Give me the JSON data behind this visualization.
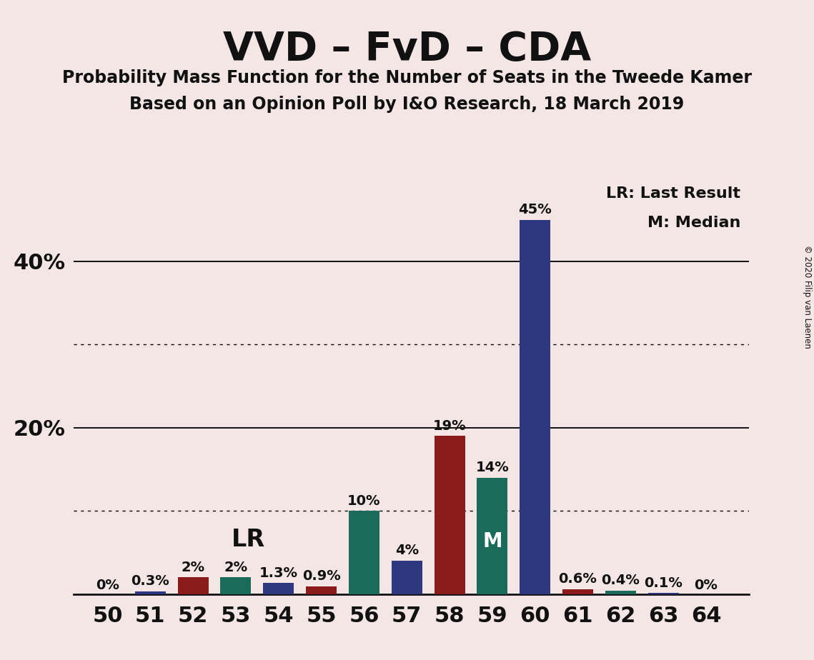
{
  "title": "VVD – FvD – CDA",
  "subtitle1": "Probability Mass Function for the Number of Seats in the Tweede Kamer",
  "subtitle2": "Based on an Opinion Poll by I&O Research, 18 March 2019",
  "copyright": "© 2020 Filip van Laenen",
  "background_color": "#f5e6e6",
  "seats": [
    50,
    51,
    52,
    53,
    54,
    55,
    56,
    57,
    58,
    59,
    60,
    61,
    62,
    63,
    64
  ],
  "values": [
    0.0,
    0.3,
    2.0,
    2.0,
    1.3,
    0.9,
    10.0,
    4.0,
    19.0,
    14.0,
    45.0,
    0.6,
    0.4,
    0.1,
    0.0
  ],
  "labels": [
    "0%",
    "0.3%",
    "2%",
    "2%",
    "1.3%",
    "0.9%",
    "10%",
    "4%",
    "19%",
    "14%",
    "45%",
    "0.6%",
    "0.4%",
    "0.1%",
    "0%"
  ],
  "bar_colors": [
    "#2e3880",
    "#2e3880",
    "#8b1a1a",
    "#1a6b5a",
    "#2e3880",
    "#8b1a1a",
    "#1a6b5a",
    "#2e3880",
    "#8b1a1a",
    "#1a6b5a",
    "#2e3880",
    "#8b1a1a",
    "#1a6b5a",
    "#2e3880",
    "#8b1a1a"
  ],
  "lr_seat": 54,
  "median_seat": 59,
  "major_yticks": [
    20,
    40
  ],
  "minor_yticks": [
    10,
    30
  ],
  "legend_text1": "LR: Last Result",
  "legend_text2": "M: Median",
  "axis_color": "#111111",
  "text_color": "#111111",
  "ymax": 50
}
